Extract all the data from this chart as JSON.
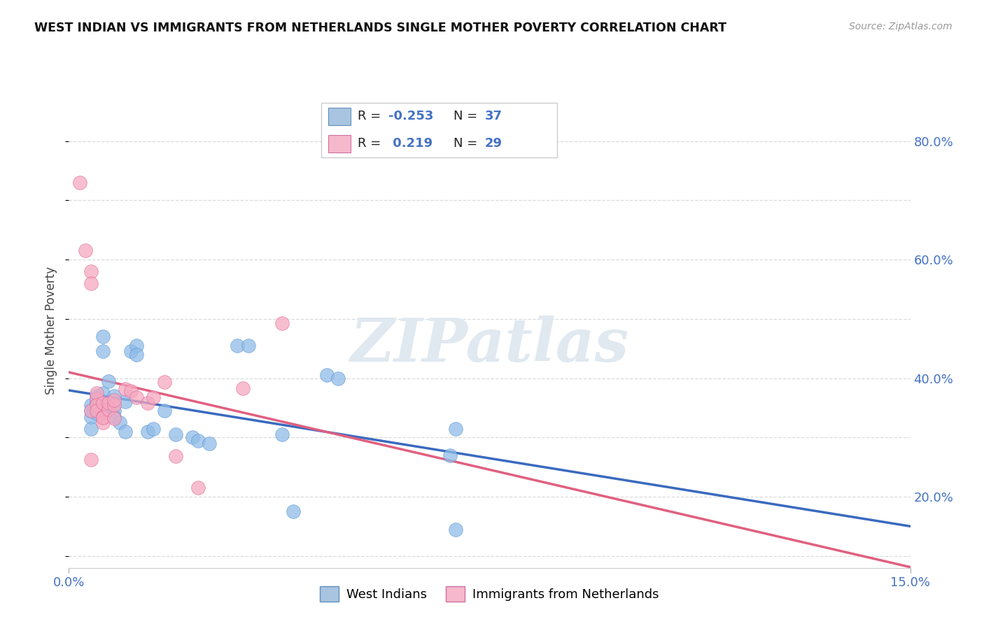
{
  "title": "WEST INDIAN VS IMMIGRANTS FROM NETHERLANDS SINGLE MOTHER POVERTY CORRELATION CHART",
  "source": "Source: ZipAtlas.com",
  "ylabel": "Single Mother Poverty",
  "xmin": 0.0,
  "xmax": 0.15,
  "ymin": 0.08,
  "ymax": 0.88,
  "yticks": [
    0.2,
    0.4,
    0.6,
    0.8
  ],
  "ytick_labels": [
    "20.0%",
    "40.0%",
    "60.0%",
    "80.0%"
  ],
  "xtick_labels": [
    "0.0%",
    "15.0%"
  ],
  "west_indian_R": -0.253,
  "west_indian_N": 37,
  "netherlands_R": 0.219,
  "netherlands_N": 29,
  "west_indian_color": "#90bce8",
  "west_indian_edge": "#5090d0",
  "netherlands_color": "#f5a8c0",
  "netherlands_edge": "#e06090",
  "trend_wi_color": "#3a6abf",
  "trend_nl_color": "#e06080",
  "trend_dashed_color": "#c0c0c0",
  "grid_color": "#d8d8d8",
  "watermark_text": "ZIPatlas",
  "watermark_color": "#e0e8f0",
  "west_indian_points": [
    [
      0.004,
      0.355
    ],
    [
      0.004,
      0.335
    ],
    [
      0.004,
      0.345
    ],
    [
      0.004,
      0.315
    ],
    [
      0.005,
      0.36
    ],
    [
      0.005,
      0.34
    ],
    [
      0.005,
      0.37
    ],
    [
      0.006,
      0.375
    ],
    [
      0.006,
      0.445
    ],
    [
      0.006,
      0.47
    ],
    [
      0.007,
      0.395
    ],
    [
      0.007,
      0.355
    ],
    [
      0.008,
      0.345
    ],
    [
      0.008,
      0.335
    ],
    [
      0.008,
      0.37
    ],
    [
      0.009,
      0.325
    ],
    [
      0.01,
      0.31
    ],
    [
      0.01,
      0.36
    ],
    [
      0.011,
      0.445
    ],
    [
      0.012,
      0.455
    ],
    [
      0.012,
      0.44
    ],
    [
      0.014,
      0.31
    ],
    [
      0.015,
      0.315
    ],
    [
      0.017,
      0.345
    ],
    [
      0.019,
      0.305
    ],
    [
      0.022,
      0.3
    ],
    [
      0.023,
      0.295
    ],
    [
      0.025,
      0.29
    ],
    [
      0.03,
      0.455
    ],
    [
      0.032,
      0.455
    ],
    [
      0.038,
      0.305
    ],
    [
      0.04,
      0.175
    ],
    [
      0.046,
      0.405
    ],
    [
      0.048,
      0.4
    ],
    [
      0.068,
      0.27
    ],
    [
      0.069,
      0.315
    ],
    [
      0.069,
      0.145
    ]
  ],
  "netherlands_points": [
    [
      0.002,
      0.73
    ],
    [
      0.003,
      0.615
    ],
    [
      0.004,
      0.58
    ],
    [
      0.004,
      0.56
    ],
    [
      0.004,
      0.345
    ],
    [
      0.005,
      0.365
    ],
    [
      0.005,
      0.375
    ],
    [
      0.005,
      0.355
    ],
    [
      0.005,
      0.345
    ],
    [
      0.006,
      0.335
    ],
    [
      0.006,
      0.325
    ],
    [
      0.006,
      0.358
    ],
    [
      0.006,
      0.333
    ],
    [
      0.007,
      0.348
    ],
    [
      0.007,
      0.358
    ],
    [
      0.008,
      0.355
    ],
    [
      0.008,
      0.332
    ],
    [
      0.008,
      0.363
    ],
    [
      0.01,
      0.382
    ],
    [
      0.011,
      0.378
    ],
    [
      0.012,
      0.368
    ],
    [
      0.014,
      0.358
    ],
    [
      0.015,
      0.368
    ],
    [
      0.017,
      0.393
    ],
    [
      0.019,
      0.268
    ],
    [
      0.023,
      0.215
    ],
    [
      0.031,
      0.383
    ],
    [
      0.038,
      0.493
    ],
    [
      0.004,
      0.263
    ]
  ]
}
